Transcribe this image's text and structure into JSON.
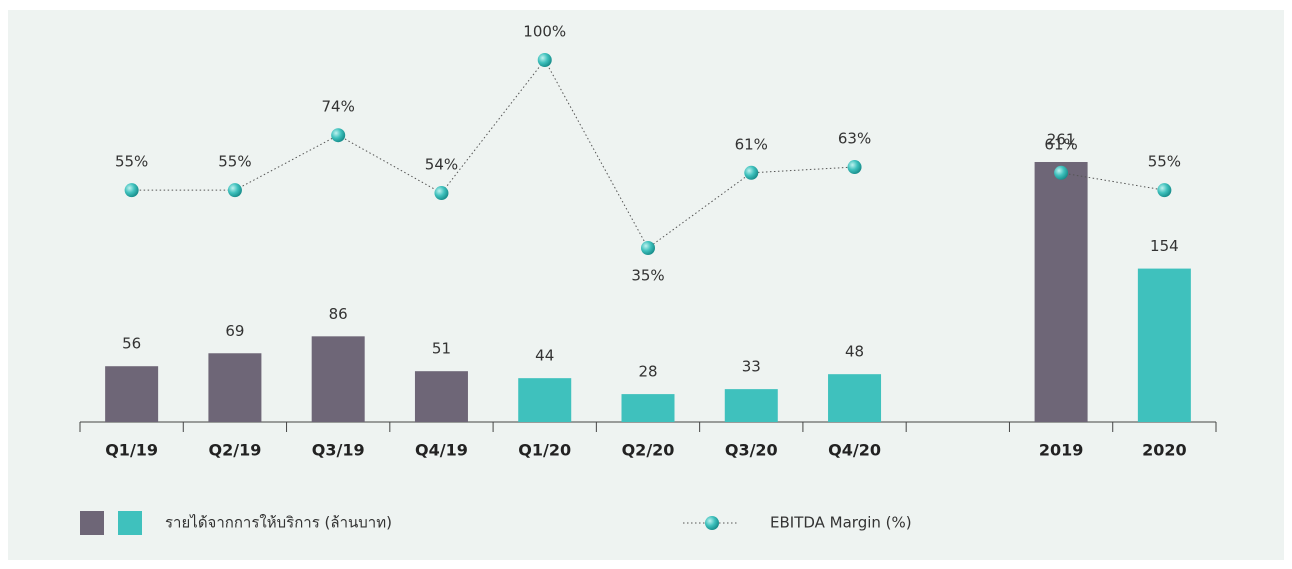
{
  "chart_data": {
    "type": "bar_line",
    "categories": [
      "Q1/19",
      "Q2/19",
      "Q3/19",
      "Q4/19",
      "Q1/20",
      "Q2/20",
      "Q3/20",
      "Q4/20",
      null,
      "2019",
      "2020"
    ],
    "series": [
      {
        "name": "รายได้จากการให้บริการ (ล้านบาท)",
        "type": "bar",
        "colors": [
          "#6e6677",
          "#6e6677",
          "#6e6677",
          "#6e6677",
          "#3fc1bd",
          "#3fc1bd",
          "#3fc1bd",
          "#3fc1bd",
          null,
          "#6e6677",
          "#3fc1bd"
        ],
        "legend_colors": [
          "#6e6677",
          "#3fc1bd"
        ],
        "values": [
          56,
          69,
          86,
          51,
          44,
          28,
          33,
          48,
          null,
          261,
          154
        ]
      },
      {
        "name": "EBITDA Margin (%)",
        "type": "line",
        "color": "#2fb3b0",
        "values": [
          55,
          55,
          74,
          54,
          100,
          35,
          61,
          63,
          null,
          61,
          55
        ],
        "value_labels": [
          "55%",
          "55%",
          "74%",
          "54%",
          "100%",
          "35%",
          "61%",
          "63%",
          null,
          "61%",
          "55%"
        ]
      }
    ]
  }
}
